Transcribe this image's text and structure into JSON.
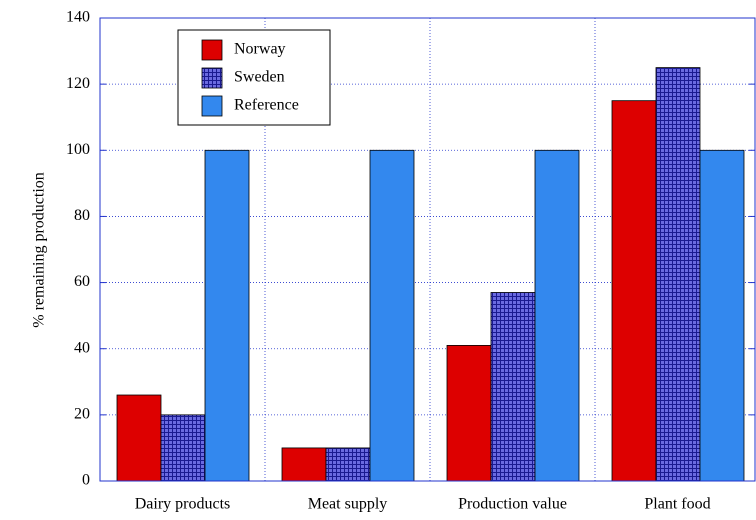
{
  "chart_data": {
    "type": "bar",
    "y_label": "% remaining production",
    "categories": [
      "Dairy products",
      "Meat supply",
      "Production value",
      "Plant food"
    ],
    "series": [
      {
        "name": "Norway",
        "color": "#dd0000",
        "values": [
          26,
          10,
          41,
          115
        ]
      },
      {
        "name": "Sweden",
        "color": "#2a2aa8",
        "pattern": "crosshatch",
        "values": [
          20,
          10,
          57,
          125
        ]
      },
      {
        "name": "Reference",
        "color": "#3388ee",
        "values": [
          100,
          100,
          100,
          100
        ]
      }
    ],
    "ylim": [
      0,
      140
    ],
    "yticks": [
      0,
      20,
      40,
      60,
      80,
      100,
      120,
      140
    ],
    "grid": true,
    "legend": "upper left"
  }
}
